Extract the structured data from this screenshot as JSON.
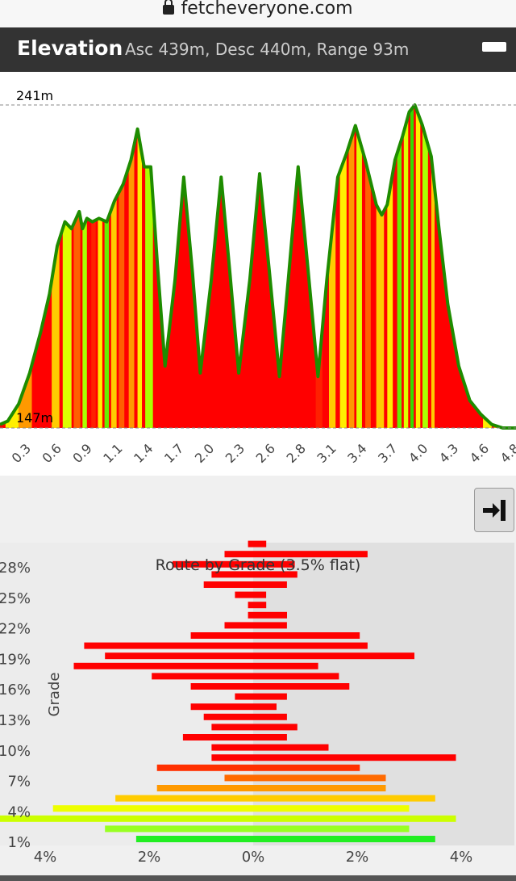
{
  "browser": {
    "url": "fetcheveryone.com"
  },
  "header": {
    "title": "Elevation",
    "summary": "Asc 439m, Desc 440m, Range 93m"
  },
  "colors": {
    "header_bg": "#333333",
    "elevation_outline": "#1e8c00",
    "steep": "#ff0000"
  },
  "icons": {
    "lock": "lock-icon",
    "minimize": "minimize-icon",
    "collapse": "arrow-to-bar-icon"
  },
  "chart_data": [
    {
      "type": "area",
      "max_label": "241m",
      "min_label": "147m",
      "ylim": [
        147,
        241
      ],
      "xlim": [
        0.13,
        4.82
      ],
      "x_ticks": [
        "0.3",
        "0.6",
        "0.9",
        "1.1",
        "1.4",
        "1.7",
        "2.0",
        "2.3",
        "2.6",
        "2.8",
        "3.1",
        "3.4",
        "3.7",
        "4.0",
        "4.3",
        "4.6",
        "4.8"
      ],
      "profile": [
        [
          0.13,
          148
        ],
        [
          0.2,
          149
        ],
        [
          0.3,
          154
        ],
        [
          0.4,
          163
        ],
        [
          0.5,
          175
        ],
        [
          0.58,
          186
        ],
        [
          0.65,
          200
        ],
        [
          0.72,
          207
        ],
        [
          0.78,
          205
        ],
        [
          0.85,
          210
        ],
        [
          0.88,
          205
        ],
        [
          0.92,
          208
        ],
        [
          0.97,
          207
        ],
        [
          1.03,
          208
        ],
        [
          1.1,
          207
        ],
        [
          1.17,
          213
        ],
        [
          1.25,
          218
        ],
        [
          1.32,
          225
        ],
        [
          1.38,
          234
        ],
        [
          1.44,
          223
        ],
        [
          1.5,
          223
        ],
        [
          1.56,
          195
        ],
        [
          1.63,
          165
        ],
        [
          1.72,
          190
        ],
        [
          1.8,
          220
        ],
        [
          1.88,
          192
        ],
        [
          1.95,
          163
        ],
        [
          2.05,
          190
        ],
        [
          2.14,
          220
        ],
        [
          2.22,
          192
        ],
        [
          2.3,
          163
        ],
        [
          2.4,
          190
        ],
        [
          2.49,
          221
        ],
        [
          2.58,
          192
        ],
        [
          2.67,
          162
        ],
        [
          2.75,
          190
        ],
        [
          2.84,
          223
        ],
        [
          2.93,
          193
        ],
        [
          3.02,
          162
        ],
        [
          3.1,
          190
        ],
        [
          3.2,
          220
        ],
        [
          3.28,
          227
        ],
        [
          3.36,
          235
        ],
        [
          3.45,
          225
        ],
        [
          3.55,
          212
        ],
        [
          3.6,
          209
        ],
        [
          3.65,
          212
        ],
        [
          3.72,
          225
        ],
        [
          3.79,
          232
        ],
        [
          3.85,
          239
        ],
        [
          3.9,
          241
        ],
        [
          3.97,
          235
        ],
        [
          4.05,
          226
        ],
        [
          4.12,
          205
        ],
        [
          4.2,
          183
        ],
        [
          4.3,
          165
        ],
        [
          4.4,
          155
        ],
        [
          4.5,
          151
        ],
        [
          4.6,
          148
        ],
        [
          4.7,
          147
        ],
        [
          4.82,
          147
        ]
      ],
      "grade_colors": [
        "#ff0000",
        "#ff0000",
        "#ff0000",
        "#ff0000",
        "#ff0000",
        "#ff2000",
        "#ff6000",
        "#ff9900",
        "#ffcc00",
        "#ffee00",
        "#ddff00",
        "#aaff00",
        "#66ee00",
        "#33dd00"
      ],
      "stripes": [
        [
          0.18,
          0.3,
          9
        ],
        [
          0.3,
          0.42,
          7
        ],
        [
          0.42,
          0.5,
          4
        ],
        [
          0.52,
          0.58,
          3
        ],
        [
          0.6,
          0.67,
          8
        ],
        [
          0.7,
          0.78,
          10
        ],
        [
          0.8,
          0.86,
          6
        ],
        [
          0.88,
          0.92,
          11
        ],
        [
          0.96,
          1.0,
          5
        ],
        [
          1.02,
          1.06,
          9
        ],
        [
          1.08,
          1.12,
          12
        ],
        [
          1.14,
          1.19,
          8
        ],
        [
          1.21,
          1.26,
          6
        ],
        [
          1.3,
          1.35,
          7
        ],
        [
          1.38,
          1.42,
          9
        ],
        [
          1.45,
          1.52,
          11
        ],
        [
          3.0,
          3.06,
          5
        ],
        [
          3.12,
          3.18,
          8
        ],
        [
          3.22,
          3.28,
          9
        ],
        [
          3.3,
          3.35,
          7
        ],
        [
          3.37,
          3.42,
          10
        ],
        [
          3.45,
          3.5,
          6
        ],
        [
          3.55,
          3.62,
          8
        ],
        [
          3.65,
          3.7,
          9
        ],
        [
          3.74,
          3.78,
          12
        ],
        [
          3.8,
          3.84,
          10
        ],
        [
          3.86,
          3.89,
          13
        ],
        [
          3.91,
          3.95,
          9
        ],
        [
          3.97,
          4.02,
          11
        ],
        [
          4.05,
          4.08,
          8
        ],
        [
          4.52,
          4.6,
          9
        ],
        [
          4.62,
          4.72,
          7
        ]
      ]
    },
    {
      "type": "bar",
      "title": "Route by Grade (3.5% flat)",
      "ylabel": "Grade",
      "flat_band_label": "3.5% flat",
      "x_ticks": [
        "4%",
        "2%",
        "0%",
        "2%",
        "4%"
      ],
      "x_tick_values": [
        -4,
        -2,
        0,
        2,
        4
      ],
      "y_ticks": [
        "28%",
        "25%",
        "22%",
        "19%",
        "16%",
        "13%",
        "10%",
        "7%",
        "4%",
        "1%"
      ],
      "xlim": [
        -4.9,
        5.0
      ],
      "bars": [
        {
          "grade": 29,
          "left": -0.1,
          "right": 0.25,
          "color": "#ff0000"
        },
        {
          "grade": 28,
          "left": -0.55,
          "right": 2.2,
          "color": "#ff0000"
        },
        {
          "grade": 27,
          "left": -1.55,
          "right": 0.8,
          "color": "#ff0000"
        },
        {
          "grade": 26,
          "left": -0.8,
          "right": 0.85,
          "color": "#ff0000"
        },
        {
          "grade": 25,
          "left": -0.95,
          "right": 0.65,
          "color": "#ff0000"
        },
        {
          "grade": 24,
          "left": -0.35,
          "right": 0.25,
          "color": "#ff0000"
        },
        {
          "grade": 23,
          "left": -0.1,
          "right": 0.25,
          "color": "#ff0000"
        },
        {
          "grade": 22,
          "left": -0.1,
          "right": 0.65,
          "color": "#ff0000"
        },
        {
          "grade": 21,
          "left": -0.55,
          "right": 0.65,
          "color": "#ff0000"
        },
        {
          "grade": 20,
          "left": -1.2,
          "right": 2.05,
          "color": "#ff0000"
        },
        {
          "grade": 19,
          "left": -3.25,
          "right": 2.2,
          "color": "#ff0000"
        },
        {
          "grade": 18,
          "left": -2.85,
          "right": 3.1,
          "color": "#ff0000"
        },
        {
          "grade": 17,
          "left": -3.45,
          "right": 1.25,
          "color": "#ff0000"
        },
        {
          "grade": 16,
          "left": -1.95,
          "right": 1.65,
          "color": "#ff0000"
        },
        {
          "grade": 15,
          "left": -1.2,
          "right": 1.85,
          "color": "#ff0000"
        },
        {
          "grade": 14,
          "left": -0.35,
          "right": 0.65,
          "color": "#ff0000"
        },
        {
          "grade": 13,
          "left": -1.2,
          "right": 0.45,
          "color": "#ff0000"
        },
        {
          "grade": 12,
          "left": -0.95,
          "right": 0.65,
          "color": "#ff0000"
        },
        {
          "grade": 11,
          "left": -0.8,
          "right": 0.85,
          "color": "#ff0000"
        },
        {
          "grade": 10,
          "left": -1.35,
          "right": 0.65,
          "color": "#ff0000"
        },
        {
          "grade": 9,
          "left": -0.8,
          "right": 1.45,
          "color": "#ff0000"
        },
        {
          "grade": 8,
          "left": -0.8,
          "right": 3.9,
          "color": "#ff0000"
        },
        {
          "grade": 7,
          "left": -1.85,
          "right": 2.05,
          "color": "#ff3000"
        },
        {
          "grade": 6,
          "left": -0.55,
          "right": 2.55,
          "color": "#ff6a00"
        },
        {
          "grade": 5,
          "left": -1.85,
          "right": 2.55,
          "color": "#ff9900"
        },
        {
          "grade": 4,
          "left": -2.65,
          "right": 3.5,
          "color": "#ffcc00"
        },
        {
          "grade": 3,
          "left": -3.85,
          "right": 3.0,
          "color": "#eeff00"
        },
        {
          "grade": 2,
          "left": -4.9,
          "right": 3.9,
          "color": "#ccff00"
        },
        {
          "grade": 1,
          "left": -2.85,
          "right": 3.0,
          "color": "#99ff22"
        },
        {
          "grade": 0,
          "left": -2.25,
          "right": 3.5,
          "color": "#22ee22"
        }
      ]
    }
  ]
}
